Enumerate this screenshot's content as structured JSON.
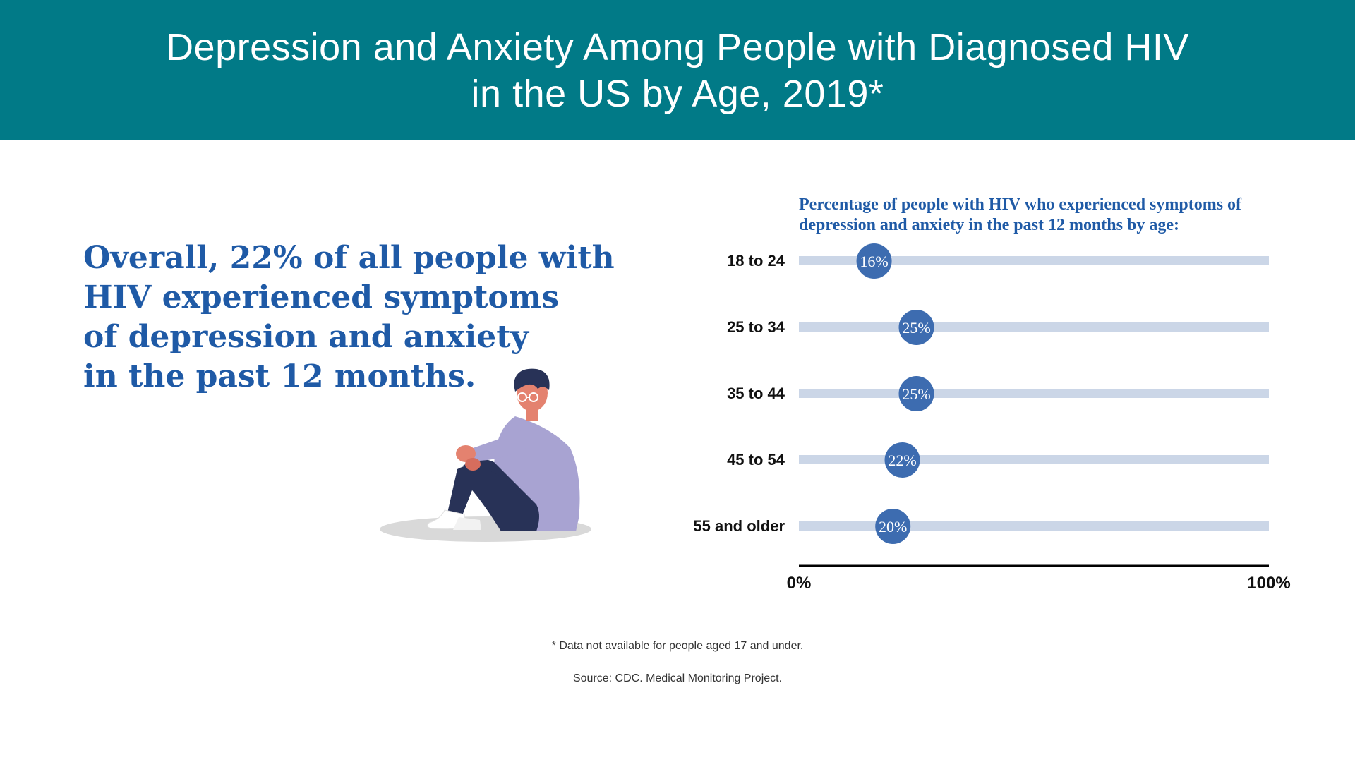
{
  "header": {
    "title_line1": "Depression and Anxiety Among People with Diagnosed HIV",
    "title_line2": "in the US by Age, 2019*"
  },
  "callout": {
    "lines": [
      "Overall, 22% of all people with",
      "HIV experienced symptoms",
      "of depression and anxiety",
      "in the past 12 months."
    ]
  },
  "illustration": {
    "icon": "sitting-person-icon"
  },
  "chart_data": {
    "type": "bar",
    "title": "Percentage of people with HIV who experienced symptoms of depression and anxiety in the past 12 months by age:",
    "title_lines": [
      "Percentage of people with HIV who experienced symptoms of",
      "depression and anxiety in the past 12 months by age:"
    ],
    "categories": [
      "18 to 24",
      "25 to 34",
      "35 to 44",
      "45 to 54",
      "55 and older"
    ],
    "values": [
      16,
      25,
      25,
      22,
      20
    ],
    "value_labels": [
      "16%",
      "25%",
      "25%",
      "22%",
      "20%"
    ],
    "xlim": [
      0,
      100
    ],
    "x_tick_labels": [
      "0%",
      "100%"
    ],
    "orientation": "horizontal",
    "grid": false,
    "colors": {
      "track": "#CBD6E7",
      "marker": "#3D6CB0",
      "marker_text": "#ffffff",
      "axis": "#000000"
    }
  },
  "footer": {
    "footnote": "* Data not available for people aged 17 and under.",
    "source": "Source: CDC. Medical Monitoring Project."
  },
  "colors": {
    "header_bg": "#017A87",
    "accent_blue": "#1F5AA6"
  }
}
